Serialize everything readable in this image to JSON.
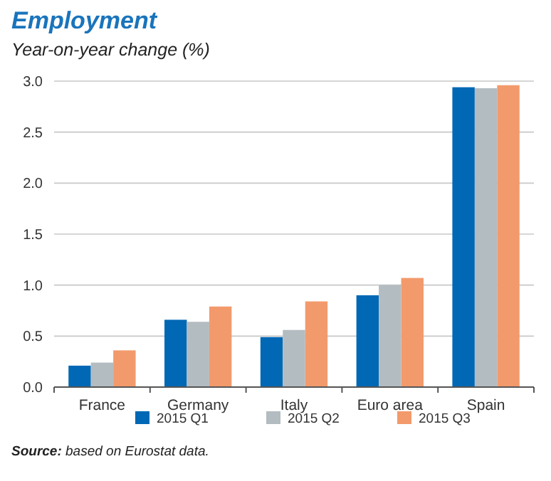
{
  "chart_data": {
    "type": "bar",
    "title": "Employment",
    "subtitle": "Year-on-year change (%)",
    "categories": [
      "France",
      "Germany",
      "Italy",
      "Euro area",
      "Spain"
    ],
    "series": [
      {
        "name": "2015 Q1",
        "color": "#0068b4",
        "values": [
          0.21,
          0.66,
          0.49,
          0.9,
          2.94
        ]
      },
      {
        "name": "2015 Q2",
        "color": "#b3bcc1",
        "values": [
          0.24,
          0.64,
          0.56,
          1.0,
          2.93
        ]
      },
      {
        "name": "2015 Q3",
        "color": "#f29a6c",
        "values": [
          0.36,
          0.79,
          0.84,
          1.07,
          2.96
        ]
      }
    ],
    "ylim": [
      0,
      3
    ],
    "yticks": [
      {
        "value": 0,
        "label": "0.0"
      },
      {
        "value": 0.5,
        "label": "0.5"
      },
      {
        "value": 1,
        "label": "1.0"
      },
      {
        "value": 1.5,
        "label": "1.5"
      },
      {
        "value": 2,
        "label": "2.0"
      },
      {
        "value": 2.5,
        "label": "2.5"
      },
      {
        "value": 3,
        "label": "3.0"
      }
    ],
    "grid": "y",
    "legend": "bottom",
    "annotations": [
      "Source: based on Eurostat data."
    ]
  }
}
